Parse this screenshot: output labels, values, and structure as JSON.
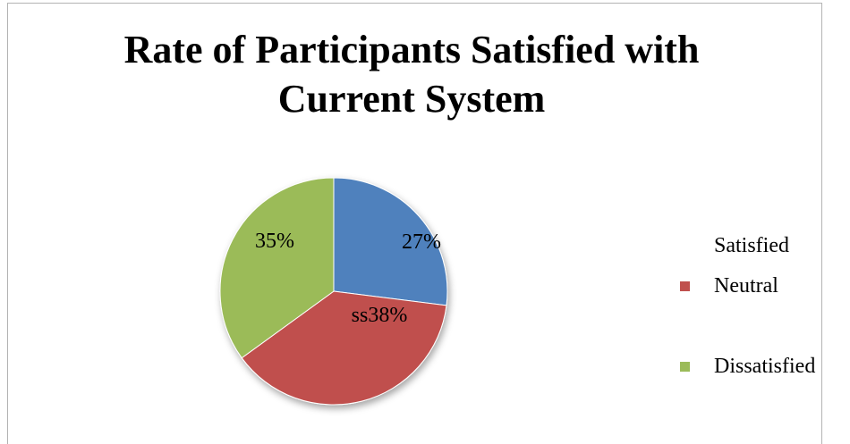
{
  "chart_data": {
    "type": "pie",
    "title": [
      "Rate of Participants Satisfied with",
      "Current System"
    ],
    "slices": [
      {
        "name": "Satisfied",
        "value": 27,
        "label": "27%",
        "color": "#4f81bd",
        "show_swatch": false
      },
      {
        "name": "Neutral",
        "value": 38,
        "label": "ss38%",
        "color": "#c0504d",
        "show_swatch": true
      },
      {
        "name": "Dissatisfied",
        "value": 35,
        "label": "35%",
        "color": "#9bbb59",
        "show_swatch": true
      }
    ],
    "legend_position": "right",
    "start_angle_deg": 0,
    "direction": "clockwise"
  }
}
